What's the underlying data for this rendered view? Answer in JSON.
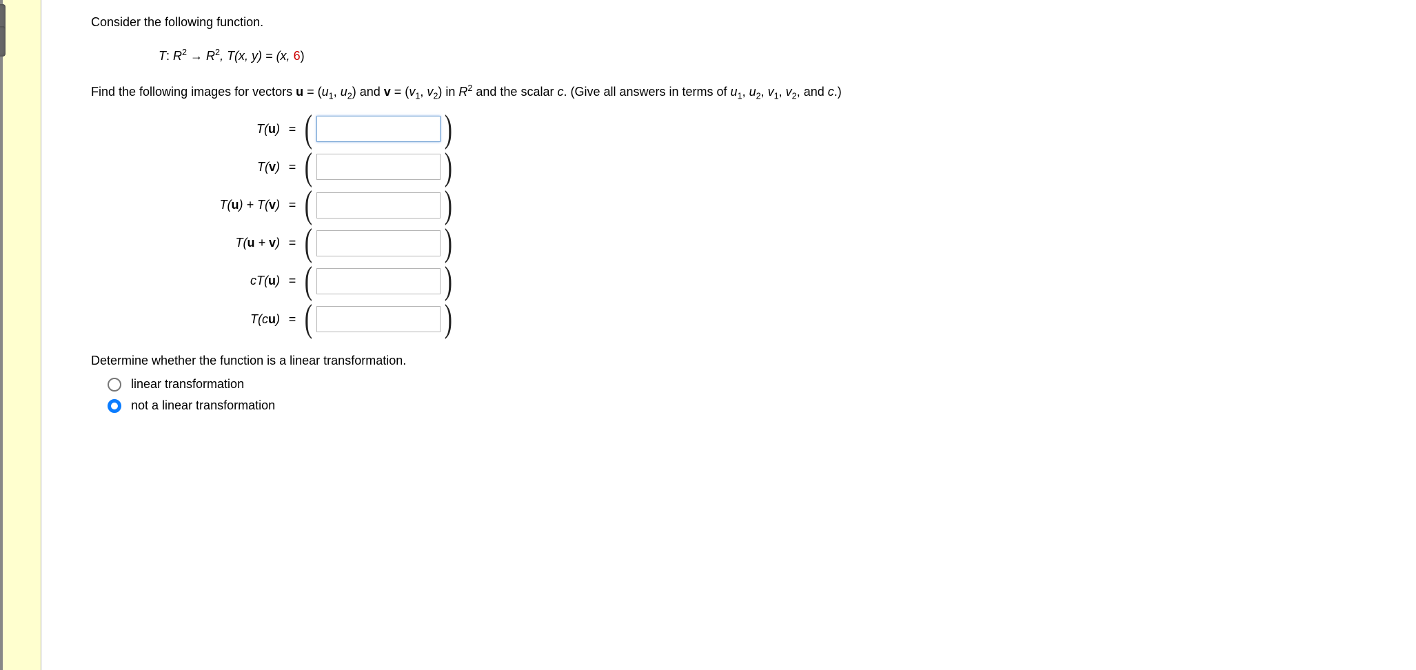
{
  "intro": "Consider the following function.",
  "definition_prefix_T": "T",
  "definition_prefix_colon": ": ",
  "definition_R": "R",
  "definition_exp": "2",
  "definition_arrow": " → ",
  "definition_Txy": ", T(x, y) = (x, ",
  "definition_six": "6",
  "definition_close": ")",
  "find_prefix": "Find the following images for vectors ",
  "find_u_bold": "u",
  "find_eq1": " = (",
  "find_u1": "u",
  "find_s1": "1",
  "find_comma": ", ",
  "find_u2": "u",
  "find_s2": "2",
  "find_closeparen": ")",
  "find_and": " and ",
  "find_v_bold": "v",
  "find_eq2": " = (",
  "find_v1": "v",
  "find_v2": "v",
  "find_in": " in ",
  "find_R": "R",
  "find_Rexp": "2",
  "find_scalar": " and the scalar ",
  "find_c": "c",
  "find_tail": ". (Give all answers in terms of ",
  "find_tail_u1": "u",
  "find_tail_u2": "u",
  "find_tail_v1": "v",
  "find_tail_v2": "v",
  "find_tail_c": "c",
  "find_tail_end": ".)",
  "rows": {
    "r1": {
      "label_html": "T(​<b style='font-style:normal'>u</b>​)"
    },
    "r2": {
      "label_html": "T(​<b style='font-style:normal'>v</b>​)"
    },
    "r3": {
      "label_html": "T(​<b style='font-style:normal'>u</b>​) + T(​<b style='font-style:normal'>v</b>​)"
    },
    "r4": {
      "label_html": "T(​<b style='font-style:normal'>u</b> + <b style='font-style:normal'>v</b>​)"
    },
    "r5": {
      "label_html": "cT(​<b style='font-style:normal'>u</b>​)"
    },
    "r6": {
      "label_html": "T(​c​<b style='font-style:normal'>u</b>​)"
    }
  },
  "determine_q": "Determine whether the function is a linear transformation.",
  "opt1": "linear transformation",
  "opt2": "not a linear transformation",
  "selected_option": 2,
  "colors": {
    "sidebar_bg": "#ffffcf",
    "red": "#cc0000",
    "radio_selected": "#0a7cff",
    "input_focus_border": "#7aa7d6"
  }
}
